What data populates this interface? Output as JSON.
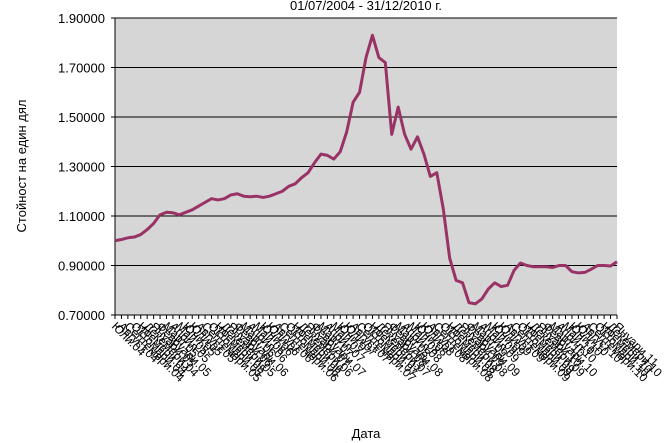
{
  "chart_data": {
    "type": "line",
    "title": "01/07/2004 - 31/12/2010 г.",
    "xlabel": "Дата",
    "ylabel": "Стойност на един дял",
    "categories": [
      "Юли.04",
      "Август.04",
      "Септември.04",
      "Октомври.04",
      "Ноември.04",
      "Декември.04",
      "Януари.05",
      "Февруари.05",
      "Март.05",
      "Април.05",
      "Май.05",
      "Юни.05",
      "Юли.05",
      "Август.05",
      "Септември.05",
      "Октомври.05",
      "Ноември.05",
      "Декември.05",
      "Януари.06",
      "Февруари.06",
      "Март.06",
      "Април.06",
      "Май.06",
      "Юни.06",
      "Юли.06",
      "Август.06",
      "Септември.06",
      "Октомври.06",
      "Ноември.06",
      "Декември.06",
      "Януари.07",
      "Февруари.07",
      "Март.07",
      "Април.07",
      "Май.07",
      "Юни.07",
      "Юли.07",
      "Август.07",
      "Септември.07",
      "Октомври.07",
      "Ноември.07",
      "Декември.07",
      "Януари.08",
      "Февруари.08",
      "Март.08",
      "Април.08",
      "Май.08",
      "Юни.08",
      "Юли.08",
      "Август.08",
      "Септември.08",
      "Октомври.08",
      "Ноември.08",
      "Декември.08",
      "Януари.09",
      "Февруари.09",
      "Март.09",
      "Април.09",
      "Май.09",
      "Юни.09",
      "Юли.09",
      "Август.09",
      "Септември.09",
      "Октомври.09",
      "Ноември.09",
      "Декември.09",
      "Януари.10",
      "Февруари.10",
      "Март.10",
      "Април.10",
      "Май.10",
      "Юни.10",
      "Юли.10",
      "Август.10",
      "Септември.10",
      "Октомври.10",
      "Ноември.10",
      "Декември.10",
      "Януари.11"
    ],
    "series": [
      {
        "name": "Стойност на един дял",
        "color": "#993366",
        "values": [
          1.0,
          1.005,
          1.012,
          1.015,
          1.025,
          1.045,
          1.07,
          1.105,
          1.115,
          1.113,
          1.105,
          1.115,
          1.125,
          1.14,
          1.155,
          1.17,
          1.165,
          1.17,
          1.185,
          1.19,
          1.18,
          1.178,
          1.18,
          1.175,
          1.18,
          1.19,
          1.2,
          1.22,
          1.23,
          1.255,
          1.275,
          1.315,
          1.35,
          1.345,
          1.33,
          1.36,
          1.44,
          1.56,
          1.6,
          1.74,
          1.83,
          1.74,
          1.72,
          1.43,
          1.54,
          1.43,
          1.37,
          1.42,
          1.35,
          1.26,
          1.275,
          1.13,
          0.93,
          0.84,
          0.83,
          0.75,
          0.745,
          0.765,
          0.805,
          0.83,
          0.815,
          0.82,
          0.88,
          0.91,
          0.9,
          0.895,
          0.895,
          0.895,
          0.892,
          0.9,
          0.9,
          0.875,
          0.87,
          0.872,
          0.885,
          0.9,
          0.9,
          0.898,
          0.915
        ]
      }
    ],
    "ylim": [
      0.7,
      1.9
    ],
    "yticks": [
      {
        "value": 0.7,
        "label": "0.70000"
      },
      {
        "value": 0.9,
        "label": "0.90000"
      },
      {
        "value": 1.1,
        "label": "1.10000"
      },
      {
        "value": 1.3,
        "label": "1.30000"
      },
      {
        "value": 1.5,
        "label": "1.50000"
      },
      {
        "value": 1.7,
        "label": "1.70000"
      },
      {
        "value": 1.9,
        "label": "1.90000"
      }
    ],
    "grid": true
  }
}
